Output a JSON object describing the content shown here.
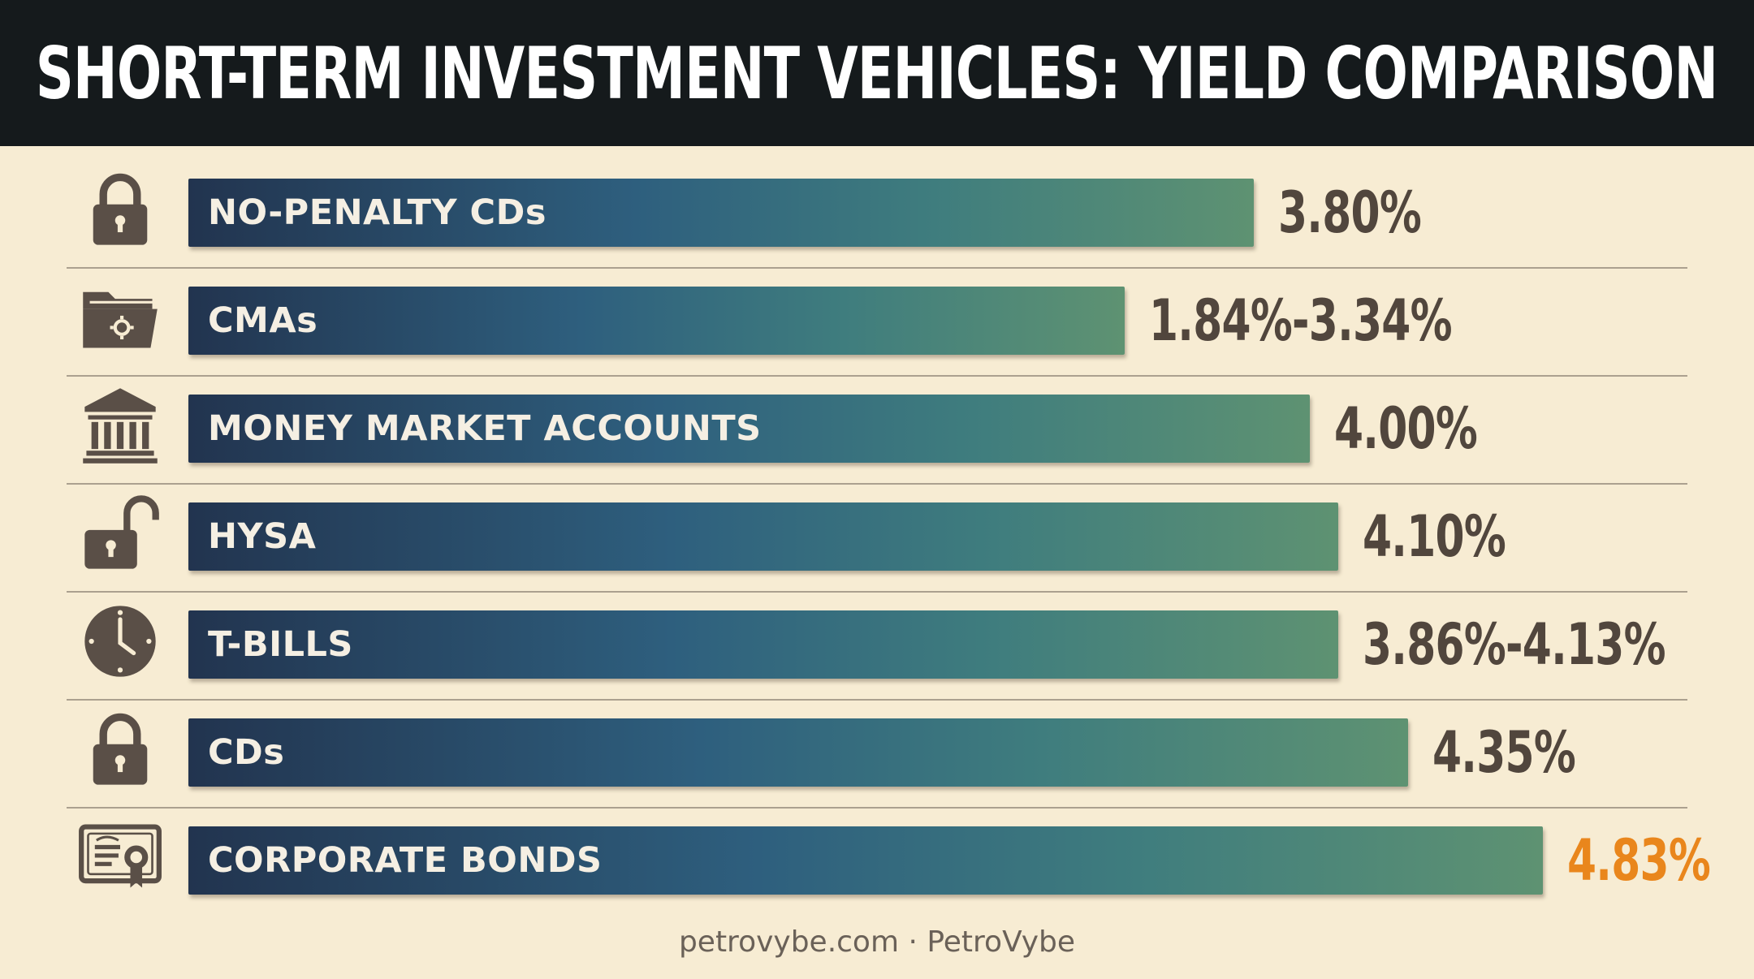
{
  "title": "SHORT-TERM INVESTMENT VEHICLES: YIELD COMPARISON",
  "footer": "petrovybe.com · PetroVybe",
  "colors": {
    "header_bg": "#151a1c",
    "page_bg": "#f7ecd3",
    "bar_start": "#22344f",
    "bar_end": "#5e9272",
    "value_text": "#51463d",
    "highlight": "#e9861c",
    "icon": "#5a4f47"
  },
  "chart_data": {
    "type": "bar",
    "orientation": "horizontal",
    "title": "SHORT-TERM INVESTMENT VEHICLES: YIELD COMPARISON",
    "categories": [
      "NO-PENALTY CDs",
      "CMAs",
      "MONEY MARKET ACCOUNTS",
      "HYSA",
      "T-BILLS",
      "CDs",
      "CORPORATE BONDS"
    ],
    "values": [
      3.8,
      3.34,
      4.0,
      4.1,
      4.1,
      4.35,
      4.83
    ],
    "value_labels": [
      "3.80%",
      "1.84%-3.34%",
      "4.00%",
      "4.10%",
      "3.86%-4.13%",
      "4.35%",
      "4.83%"
    ],
    "icons": [
      "lock-icon",
      "folder-gear-icon",
      "bank-icon",
      "unlock-icon",
      "clock-icon",
      "lock-icon",
      "certificate-icon"
    ],
    "highlight_index": 6,
    "xlim": [
      0,
      5.2
    ],
    "grid": false,
    "legend": "none"
  }
}
